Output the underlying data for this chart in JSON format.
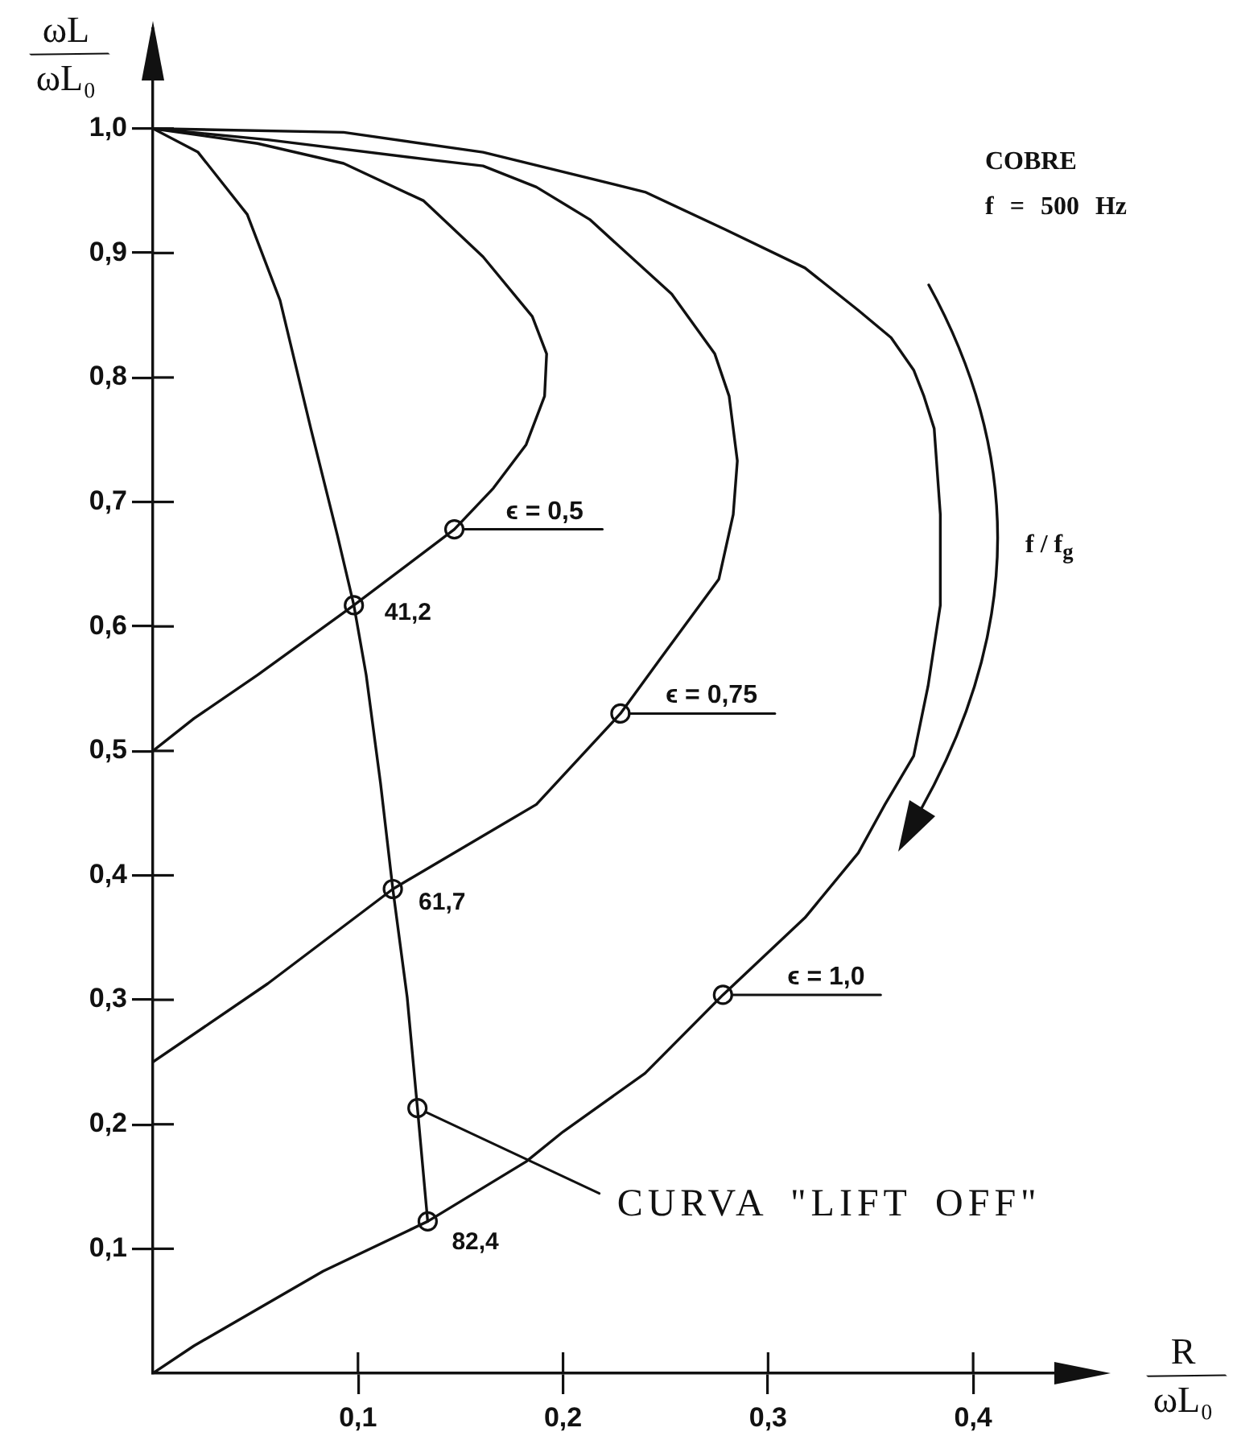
{
  "chart_data": {
    "type": "line",
    "xlabel": "R/ωL₀",
    "ylabel": "ωL/ωL₀",
    "xlim": [
      0,
      0.46
    ],
    "ylim": [
      0,
      1.08
    ],
    "xticks": [
      {
        "value": 0.1,
        "label": "0,1"
      },
      {
        "value": 0.2,
        "label": "0,2"
      },
      {
        "value": 0.3,
        "label": "0,3"
      },
      {
        "value": 0.4,
        "label": "0,4"
      }
    ],
    "yticks": [
      {
        "value": 0.1,
        "label": "0,1"
      },
      {
        "value": 0.2,
        "label": "0,2"
      },
      {
        "value": 0.3,
        "label": "0,3"
      },
      {
        "value": 0.4,
        "label": "0,4"
      },
      {
        "value": 0.5,
        "label": "0,5"
      },
      {
        "value": 0.6,
        "label": "0,6"
      },
      {
        "value": 0.7,
        "label": "0,7"
      },
      {
        "value": 0.8,
        "label": "0,8"
      },
      {
        "value": 0.9,
        "label": "0,9"
      },
      {
        "value": 1.0,
        "label": "1,0"
      }
    ],
    "grid": false,
    "legend": false,
    "marker": "none",
    "line_style": "solid",
    "series": [
      {
        "color": "#111111",
        "x": [
          0,
          0.02,
          0.083,
          0.134,
          0.182,
          0.2,
          0.24,
          0.278,
          0.318,
          0.344,
          0.357,
          0.371,
          0.378,
          0.384,
          0.384,
          0.381,
          0.376,
          0.371,
          0.36,
          0.344,
          0.318,
          0.279,
          0.24,
          0.161,
          0.093,
          0
        ],
        "values": [
          0,
          0.022,
          0.082,
          0.122,
          0.17,
          0.194,
          0.241,
          0.304,
          0.366,
          0.418,
          0.457,
          0.496,
          0.552,
          0.617,
          0.69,
          0.759,
          0.785,
          0.806,
          0.832,
          0.854,
          0.888,
          0.919,
          0.949,
          0.981,
          0.997,
          1
        ]
      },
      {
        "color": "#111111",
        "x": [
          0,
          0.056,
          0.117,
          0.187,
          0.228,
          0.247,
          0.276,
          0.283,
          0.285,
          0.281,
          0.274,
          0.253,
          0.213,
          0.187,
          0.161,
          0.135,
          0.056,
          0
        ],
        "values": [
          0.25,
          0.313,
          0.389,
          0.457,
          0.53,
          0.573,
          0.638,
          0.69,
          0.733,
          0.785,
          0.819,
          0.867,
          0.927,
          0.953,
          0.97,
          0.975,
          0.991,
          1
        ]
      },
      {
        "color": "#111111",
        "x": [
          0,
          0.02,
          0.051,
          0.098,
          0.147,
          0.166,
          0.182,
          0.191,
          0.192,
          0.185,
          0.161,
          0.132,
          0.093,
          0.051,
          0
        ],
        "values": [
          0.5,
          0.526,
          0.561,
          0.617,
          0.678,
          0.711,
          0.746,
          0.785,
          0.819,
          0.849,
          0.897,
          0.942,
          0.972,
          0.988,
          1
        ]
      },
      {
        "color": "#111111",
        "x": [
          0,
          0.022,
          0.046,
          0.062,
          0.077,
          0.09,
          0.098,
          0.104,
          0.111,
          0.117,
          0.124,
          0.129,
          0.134
        ],
        "values": [
          1,
          0.981,
          0.931,
          0.862,
          0.759,
          0.673,
          0.617,
          0.561,
          0.474,
          0.389,
          0.302,
          0.213,
          0.122
        ]
      },
      {
        "type": "scatter",
        "color": "#111111",
        "marker": "circle",
        "x": [
          0.147,
          0.098,
          0.228,
          0.117,
          0.129,
          0.278,
          0.134
        ],
        "values": [
          0.678,
          0.617,
          0.53,
          0.389,
          0.213,
          0.304,
          0.122
        ]
      }
    ],
    "annotations": [
      {
        "text": "ϵ = 0,5",
        "x": 0.147,
        "y": 0.678
      },
      {
        "text": "ϵ = 0,75",
        "x": 0.228,
        "y": 0.53
      },
      {
        "text": "ϵ = 1,0",
        "x": 0.278,
        "y": 0.304
      },
      {
        "text": "41,2",
        "x": 0.098,
        "y": 0.617
      },
      {
        "text": "61,7",
        "x": 0.117,
        "y": 0.389
      },
      {
        "text": "82,4",
        "x": 0.134,
        "y": 0.122
      },
      {
        "text": "CURVA \"LIFT OFF\"",
        "x": 0.129,
        "y": 0.213
      },
      "COBRE",
      "f = 500 Hz",
      "f / f$_{g}$"
    ]
  }
}
